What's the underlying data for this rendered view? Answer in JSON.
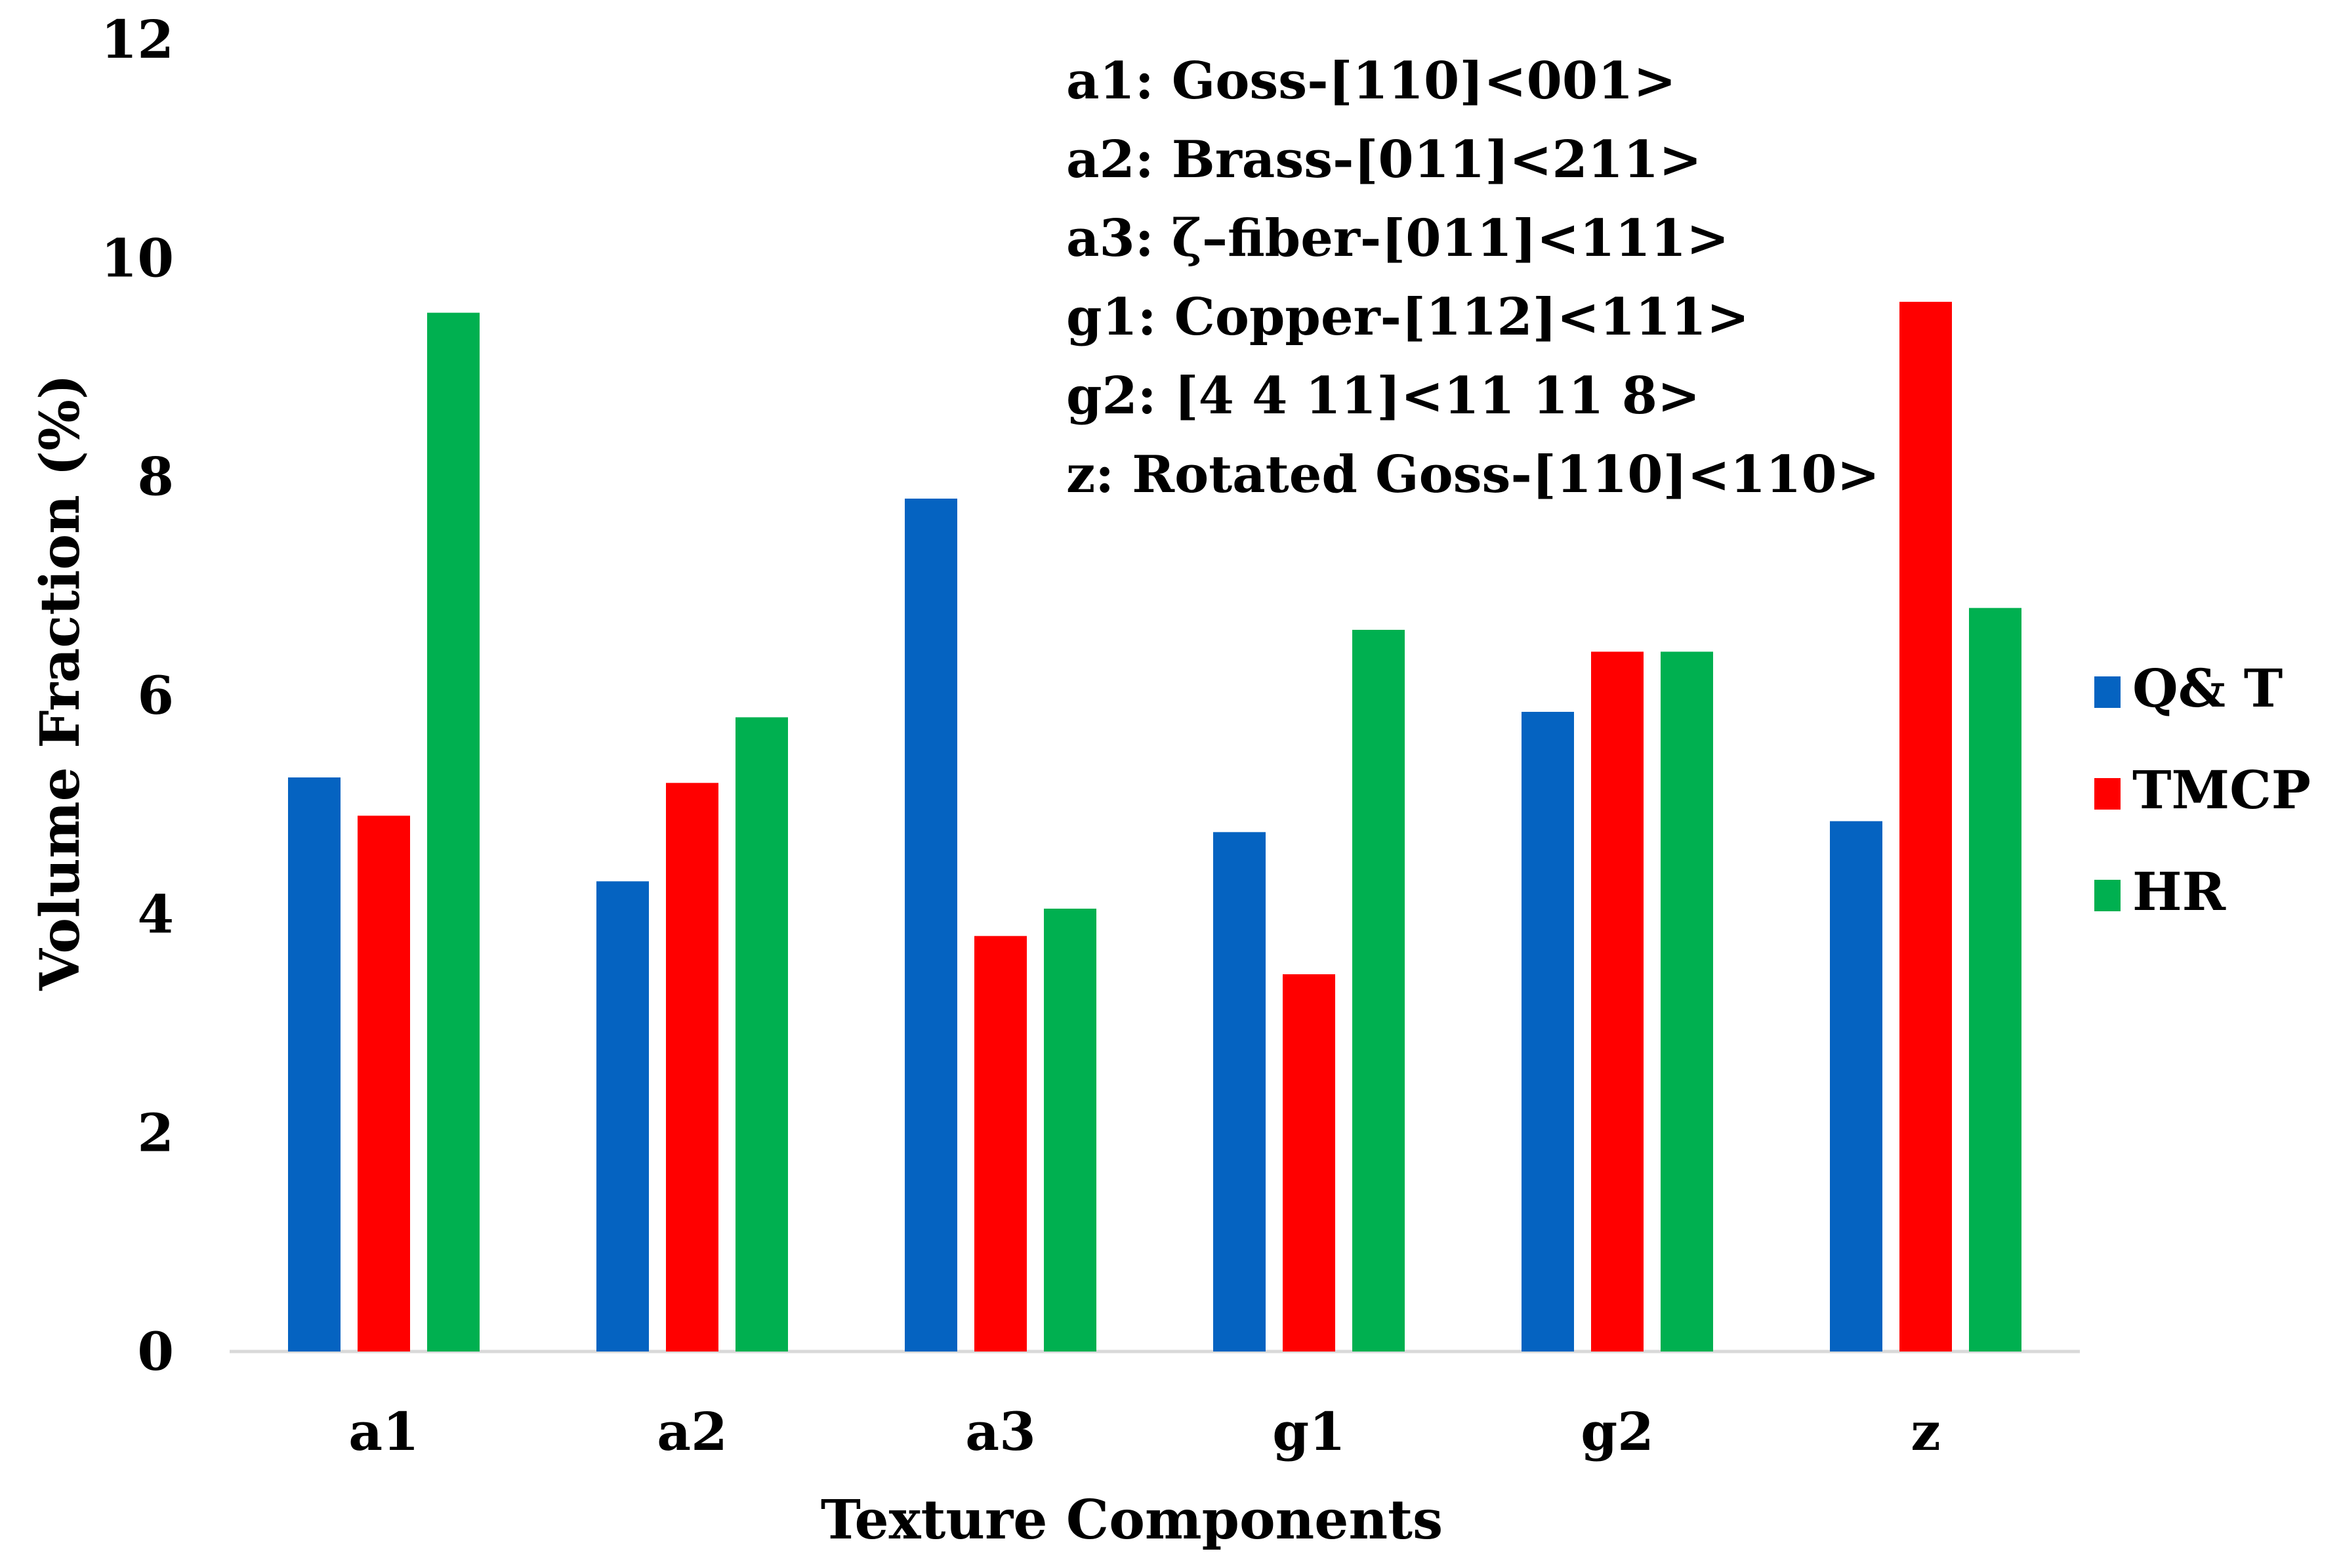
{
  "chart_data": {
    "type": "bar",
    "title": "",
    "xlabel": "Texture Components",
    "ylabel": "Volume Fraction (%)",
    "ylim": [
      0,
      12
    ],
    "yticks": [
      0,
      2,
      4,
      6,
      8,
      10,
      12
    ],
    "categories": [
      "a1",
      "a2",
      "a3",
      "g1",
      "g2",
      "z"
    ],
    "series": [
      {
        "name": "Q& T",
        "color": "#0563C1",
        "values": [
          5.25,
          4.3,
          7.8,
          4.75,
          5.85,
          4.85
        ]
      },
      {
        "name": "TMCP",
        "color": "#FF0000",
        "values": [
          4.9,
          5.2,
          3.8,
          3.45,
          6.4,
          9.6
        ]
      },
      {
        "name": "HR",
        "color": "#00B050",
        "values": [
          9.5,
          5.8,
          4.05,
          6.6,
          6.4,
          6.8
        ]
      }
    ],
    "legend_position": "right",
    "grid": false,
    "annotations": [
      "a1: Goss-[110]<001>",
      "a2: Brass-[011]<211>",
      "a3: ζ–fiber-[011]<111>",
      "g1: Copper-[112]<111>",
      "g2: [4 4 11]<11 11 8>",
      "z: Rotated Goss-[110]<110>"
    ]
  }
}
